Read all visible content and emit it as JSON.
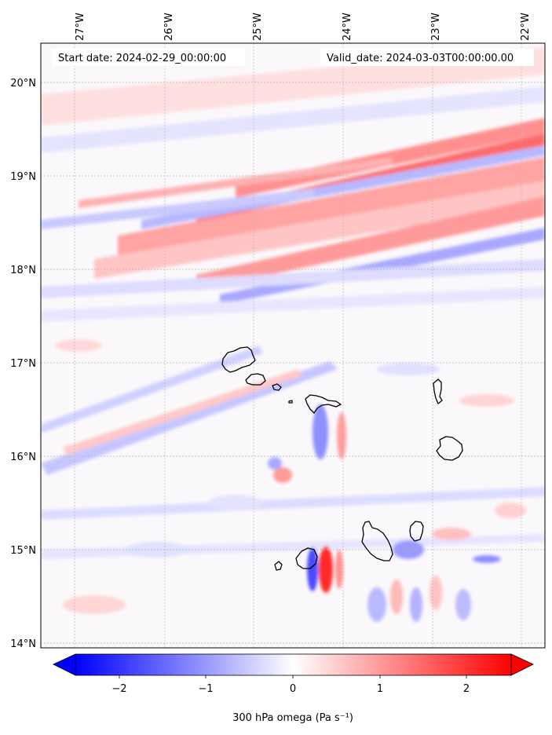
{
  "map": {
    "start_date_label": "Start date: 2024-02-29_00:00:00",
    "valid_date_label": "Valid_date: 2024-03-03T00:00:00.00",
    "lon_ticks": [
      "27°W",
      "26°W",
      "25°W",
      "24°W",
      "23°W",
      "22°W"
    ],
    "lat_ticks": [
      "20°N",
      "19°N",
      "18°N",
      "17°N",
      "16°N",
      "15°N",
      "14°N"
    ],
    "lon_range": [
      -27.3,
      -21.8
    ],
    "lat_range": [
      13.95,
      20.35
    ],
    "grid": true,
    "field": "300 hPa omega",
    "islands": [
      "Santo Antão",
      "São Vicente",
      "Santa Luzia",
      "São Nicolau",
      "Sal",
      "Boa Vista",
      "Maio",
      "Santiago",
      "Fogo",
      "Brava"
    ]
  },
  "colorbar": {
    "label": "300 hPa omega (Pa s⁻¹)",
    "ticks": [
      "−2",
      "−1",
      "0",
      "1",
      "2"
    ],
    "tick_values": [
      -2,
      -1,
      0,
      1,
      2
    ],
    "range": [
      -2.6,
      2.6
    ],
    "colormap": "bwr",
    "low_color": "#0000ff",
    "mid_color": "#ffffff",
    "high_color": "#ff0000",
    "extend": "both"
  }
}
